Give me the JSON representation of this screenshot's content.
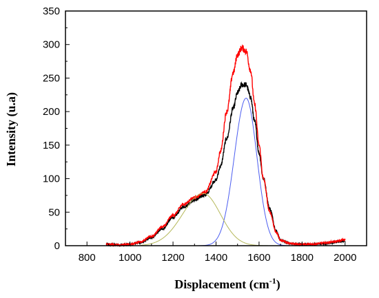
{
  "chart_data": {
    "type": "line",
    "xlabel": "Displacement (cm",
    "xlabel_sup": "-1",
    "xlabel_end": ")",
    "ylabel": "Intensity (u.a)",
    "xlim": [
      700,
      2100
    ],
    "ylim": [
      0,
      350
    ],
    "xticks": [
      800,
      1000,
      1200,
      1400,
      1600,
      1800,
      2000
    ],
    "yticks": [
      0,
      50,
      100,
      150,
      200,
      250,
      300,
      350
    ],
    "x_tick_labels": [
      "800",
      "1000",
      "1200",
      "1400",
      "1600",
      "1800",
      "2000"
    ],
    "y_tick_labels": [
      "0",
      "50",
      "100",
      "150",
      "200",
      "250",
      "300",
      "350"
    ],
    "grid": false,
    "series": [
      {
        "color": "#000000",
        "noisy": true,
        "x": [
          890,
          950,
          1000,
          1050,
          1100,
          1150,
          1200,
          1250,
          1300,
          1350,
          1400,
          1420,
          1450,
          1480,
          1500,
          1520,
          1540,
          1560,
          1580,
          1600,
          1620,
          1650,
          1680,
          1700,
          1750,
          1800,
          1850,
          1900,
          1950,
          2000
        ],
        "y": [
          2,
          1,
          2,
          5,
          12,
          25,
          42,
          58,
          68,
          76,
          98,
          118,
          160,
          205,
          228,
          240,
          240,
          222,
          185,
          138,
          100,
          55,
          22,
          8,
          3,
          2,
          2,
          3,
          5,
          7
        ]
      },
      {
        "color": "#ff0000",
        "noisy": true,
        "x": [
          890,
          950,
          1000,
          1050,
          1100,
          1150,
          1200,
          1250,
          1300,
          1350,
          1400,
          1420,
          1450,
          1480,
          1500,
          1520,
          1540,
          1560,
          1580,
          1600,
          1620,
          1650,
          1680,
          1700,
          1750,
          1800,
          1850,
          1900,
          1950,
          2000
        ],
        "y": [
          2,
          1,
          2,
          6,
          14,
          28,
          45,
          62,
          72,
          80,
          110,
          140,
          200,
          258,
          285,
          295,
          290,
          262,
          210,
          150,
          100,
          50,
          20,
          8,
          3,
          2,
          2,
          4,
          6,
          9
        ]
      },
      {
        "color": "#4a5cf0",
        "noisy": false,
        "peak": {
          "center": 1540,
          "height": 220,
          "sigma_left": 55,
          "sigma_right": 50
        },
        "x": [
          1250,
          1300,
          1350,
          1400,
          1450,
          1500,
          1540,
          1580,
          1620,
          1650,
          1700,
          1750
        ],
        "y": [
          0,
          2,
          10,
          45,
          115,
          190,
          220,
          192,
          117,
          62,
          10,
          0
        ]
      },
      {
        "color": "#b5b85a",
        "noisy": false,
        "peak": {
          "center": 1340,
          "height": 78,
          "sigma_left": 95,
          "sigma_right": 80
        },
        "x": [
          1050,
          1100,
          1150,
          1200,
          1250,
          1300,
          1340,
          1400,
          1450,
          1500,
          1550,
          1600,
          1650,
          1700
        ],
        "y": [
          0,
          3,
          10,
          26,
          45,
          70,
          78,
          63,
          39,
          19,
          6,
          2,
          0,
          0
        ]
      }
    ]
  }
}
